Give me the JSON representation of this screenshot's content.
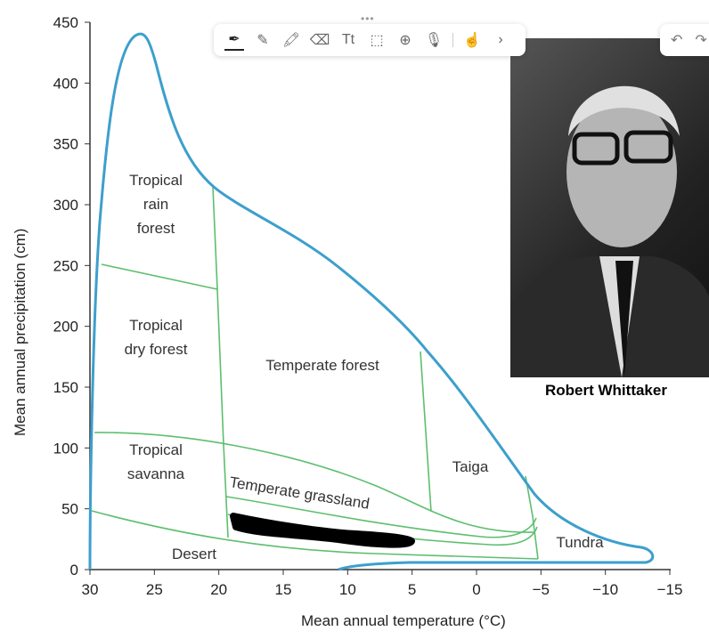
{
  "toolbar": {
    "tools": [
      {
        "name": "pen-icon",
        "glyph": "✒",
        "active": true
      },
      {
        "name": "pencil-icon",
        "glyph": "✎"
      },
      {
        "name": "highlighter-icon",
        "glyph": "🖍"
      },
      {
        "name": "eraser-icon",
        "glyph": "⌫"
      },
      {
        "name": "text-tool-icon",
        "glyph": "Tt"
      },
      {
        "name": "selection-icon",
        "glyph": "⬚"
      },
      {
        "name": "add-icon",
        "glyph": "⊕"
      },
      {
        "name": "microphone-icon",
        "glyph": "🎙"
      },
      {
        "name": "touch-hand-icon",
        "glyph": "☝"
      },
      {
        "name": "chevron-right-icon",
        "glyph": "›"
      }
    ],
    "undo_glyph": "↶",
    "redo_glyph": "↷",
    "handle": "•••"
  },
  "chart_data": {
    "type": "diagram",
    "xlabel": "Mean annual temperature (°C)",
    "ylabel": "Mean annual precipitation (cm)",
    "xlim": [
      30,
      -15
    ],
    "ylim": [
      0,
      450
    ],
    "xticks": [
      "30",
      "25",
      "20",
      "15",
      "10",
      "5",
      "0",
      "−5",
      "−10",
      "−15"
    ],
    "yticks": [
      "0",
      "50",
      "100",
      "150",
      "200",
      "250",
      "300",
      "350",
      "400",
      "450"
    ],
    "regions": [
      {
        "lines": [
          "Tropical",
          "rain",
          "forest"
        ]
      },
      {
        "lines": [
          "Tropical",
          "dry forest"
        ]
      },
      {
        "lines": [
          "Temperate forest"
        ]
      },
      {
        "lines": [
          "Tropical",
          "savanna"
        ]
      },
      {
        "lines": [
          "Temperate grassland"
        ]
      },
      {
        "lines": [
          "Taiga"
        ]
      },
      {
        "lines": [
          "Desert"
        ]
      },
      {
        "lines": [
          "Tundra"
        ]
      }
    ],
    "colors": {
      "outline": "#3d9fcc",
      "boundaries": "#5cbf6e"
    }
  },
  "photo": {
    "caption": "Robert Whittaker"
  }
}
